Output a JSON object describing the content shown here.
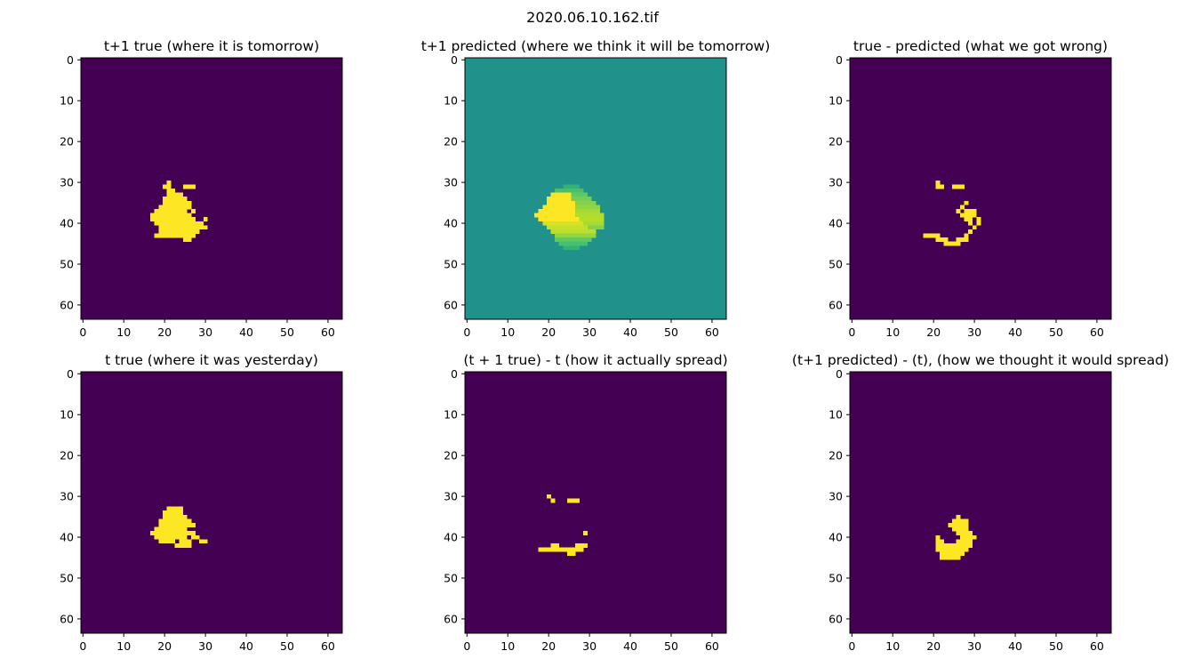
{
  "figure": {
    "title": "2020.06.10.162.tif"
  },
  "colors": {
    "low": "#440154",
    "mid": "#21918c",
    "high": "#fde725",
    "green": "#7ad151",
    "lightgreen": "#b5de2b",
    "teal": "#35b779"
  },
  "chart_data": [
    {
      "type": "heatmap",
      "title": "t+1 true (where it is tomorrow)",
      "grid_size": 64,
      "xticks": [
        0,
        10,
        20,
        30,
        40,
        50,
        60
      ],
      "yticks": [
        0,
        10,
        20,
        30,
        40,
        50,
        60
      ],
      "background": 0,
      "rows": [
        {
          "y": 30,
          "runs": [
            [
              21,
              21,
              1
            ]
          ]
        },
        {
          "y": 31,
          "runs": [
            [
              20,
              21,
              1
            ],
            [
              25,
              27,
              1
            ]
          ]
        },
        {
          "y": 32,
          "runs": [
            [
              21,
              22,
              1
            ]
          ]
        },
        {
          "y": 33,
          "runs": [
            [
              21,
              24,
              1
            ]
          ]
        },
        {
          "y": 34,
          "runs": [
            [
              20,
              25,
              1
            ]
          ]
        },
        {
          "y": 35,
          "runs": [
            [
              20,
              26,
              1
            ]
          ]
        },
        {
          "y": 36,
          "runs": [
            [
              19,
              26,
              1
            ]
          ]
        },
        {
          "y": 37,
          "runs": [
            [
              18,
              25,
              1
            ],
            [
              27,
              27,
              1
            ]
          ]
        },
        {
          "y": 38,
          "runs": [
            [
              17,
              26,
              1
            ]
          ]
        },
        {
          "y": 39,
          "runs": [
            [
              17,
              27,
              1
            ],
            [
              30,
              30,
              1
            ]
          ]
        },
        {
          "y": 40,
          "runs": [
            [
              18,
              29,
              1
            ]
          ]
        },
        {
          "y": 41,
          "runs": [
            [
              19,
              30,
              1
            ]
          ]
        },
        {
          "y": 42,
          "runs": [
            [
              19,
              28,
              1
            ]
          ]
        },
        {
          "y": 43,
          "runs": [
            [
              18,
              27,
              1
            ]
          ]
        },
        {
          "y": 44,
          "runs": [
            [
              25,
              26,
              1
            ]
          ]
        }
      ]
    },
    {
      "type": "heatmap",
      "title": "t+1 predicted (where we think it will be tomorrow)",
      "grid_size": 64,
      "xticks": [
        0,
        10,
        20,
        30,
        40,
        50,
        60
      ],
      "yticks": [
        0,
        10,
        20,
        30,
        40,
        50,
        60
      ],
      "background": 0.5,
      "rows": [
        {
          "y": 31,
          "runs": [
            [
              24,
              27,
              0.6
            ]
          ]
        },
        {
          "y": 32,
          "runs": [
            [
              22,
              28,
              0.68
            ]
          ]
        },
        {
          "y": 33,
          "runs": [
            [
              21,
              25,
              1
            ],
            [
              26,
              29,
              0.75
            ]
          ]
        },
        {
          "y": 34,
          "runs": [
            [
              20,
              25,
              1
            ],
            [
              26,
              30,
              0.78
            ]
          ]
        },
        {
          "y": 35,
          "runs": [
            [
              20,
              26,
              1
            ],
            [
              27,
              31,
              0.8
            ]
          ]
        },
        {
          "y": 36,
          "runs": [
            [
              19,
              26,
              1
            ],
            [
              27,
              32,
              0.82
            ]
          ]
        },
        {
          "y": 37,
          "runs": [
            [
              18,
              26,
              1
            ],
            [
              27,
              32,
              0.85
            ]
          ]
        },
        {
          "y": 38,
          "runs": [
            [
              17,
              26,
              1
            ],
            [
              27,
              33,
              0.86
            ]
          ]
        },
        {
          "y": 39,
          "runs": [
            [
              18,
              27,
              1
            ],
            [
              28,
              33,
              0.87
            ]
          ]
        },
        {
          "y": 40,
          "runs": [
            [
              19,
              28,
              0.93
            ],
            [
              29,
              33,
              0.85
            ]
          ]
        },
        {
          "y": 41,
          "runs": [
            [
              20,
              29,
              0.9
            ],
            [
              30,
              33,
              0.8
            ]
          ]
        },
        {
          "y": 42,
          "runs": [
            [
              21,
              31,
              0.88
            ]
          ]
        },
        {
          "y": 43,
          "runs": [
            [
              22,
              31,
              0.82
            ]
          ]
        },
        {
          "y": 44,
          "runs": [
            [
              22,
              30,
              0.75
            ]
          ]
        },
        {
          "y": 45,
          "runs": [
            [
              23,
              29,
              0.68
            ]
          ]
        },
        {
          "y": 46,
          "runs": [
            [
              24,
              27,
              0.6
            ]
          ]
        }
      ]
    },
    {
      "type": "heatmap",
      "title": "true - predicted (what we got wrong)",
      "grid_size": 64,
      "xticks": [
        0,
        10,
        20,
        30,
        40,
        50,
        60
      ],
      "yticks": [
        0,
        10,
        20,
        30,
        40,
        50,
        60
      ],
      "background": 0,
      "rows": [
        {
          "y": 30,
          "runs": [
            [
              21,
              21,
              1
            ]
          ]
        },
        {
          "y": 31,
          "runs": [
            [
              21,
              22,
              1
            ],
            [
              25,
              27,
              1
            ]
          ]
        },
        {
          "y": 35,
          "runs": [
            [
              28,
              28,
              1
            ]
          ]
        },
        {
          "y": 36,
          "runs": [
            [
              27,
              27,
              1
            ]
          ]
        },
        {
          "y": 37,
          "runs": [
            [
              26,
              26,
              1
            ],
            [
              28,
              30,
              1
            ]
          ]
        },
        {
          "y": 38,
          "runs": [
            [
              27,
              30,
              1
            ]
          ]
        },
        {
          "y": 39,
          "runs": [
            [
              28,
              29,
              1
            ],
            [
              31,
              31,
              1
            ]
          ]
        },
        {
          "y": 40,
          "runs": [
            [
              29,
              29,
              1
            ],
            [
              31,
              31,
              1
            ]
          ]
        },
        {
          "y": 41,
          "runs": [
            [
              30,
              30,
              1
            ]
          ]
        },
        {
          "y": 42,
          "runs": [
            [
              29,
              29,
              1
            ]
          ]
        },
        {
          "y": 43,
          "runs": [
            [
              18,
              21,
              1
            ],
            [
              28,
              28,
              1
            ]
          ]
        },
        {
          "y": 44,
          "runs": [
            [
              21,
              23,
              1
            ],
            [
              26,
              28,
              1
            ]
          ]
        },
        {
          "y": 45,
          "runs": [
            [
              23,
              26,
              1
            ]
          ]
        }
      ]
    },
    {
      "type": "heatmap",
      "title": "t true (where it was yesterday)",
      "grid_size": 64,
      "xticks": [
        0,
        10,
        20,
        30,
        40,
        50,
        60
      ],
      "yticks": [
        0,
        10,
        20,
        30,
        40,
        50,
        60
      ],
      "background": 0,
      "rows": [
        {
          "y": 33,
          "runs": [
            [
              21,
              24,
              1
            ]
          ]
        },
        {
          "y": 34,
          "runs": [
            [
              20,
              24,
              1
            ]
          ]
        },
        {
          "y": 35,
          "runs": [
            [
              20,
              25,
              1
            ]
          ]
        },
        {
          "y": 36,
          "runs": [
            [
              19,
              26,
              1
            ]
          ]
        },
        {
          "y": 37,
          "runs": [
            [
              19,
              27,
              1
            ]
          ]
        },
        {
          "y": 38,
          "runs": [
            [
              18,
              25,
              1
            ]
          ]
        },
        {
          "y": 39,
          "runs": [
            [
              17,
              27,
              1
            ]
          ]
        },
        {
          "y": 40,
          "runs": [
            [
              18,
              25,
              1
            ],
            [
              27,
              28,
              1
            ]
          ]
        },
        {
          "y": 41,
          "runs": [
            [
              19,
              22,
              1
            ],
            [
              24,
              26,
              1
            ],
            [
              29,
              30,
              1
            ]
          ]
        },
        {
          "y": 42,
          "runs": [
            [
              23,
              26,
              1
            ]
          ]
        }
      ]
    },
    {
      "type": "heatmap",
      "title": "(t + 1 true) - t (how it actually spread)",
      "grid_size": 64,
      "xticks": [
        0,
        10,
        20,
        30,
        40,
        50,
        60
      ],
      "yticks": [
        0,
        10,
        20,
        30,
        40,
        50,
        60
      ],
      "background": 0,
      "rows": [
        {
          "y": 30,
          "runs": [
            [
              20,
              20,
              1
            ]
          ]
        },
        {
          "y": 31,
          "runs": [
            [
              21,
              21,
              1
            ],
            [
              25,
              27,
              1
            ]
          ]
        },
        {
          "y": 39,
          "runs": [
            [
              29,
              29,
              1
            ]
          ]
        },
        {
          "y": 42,
          "runs": [
            [
              21,
              22,
              1
            ],
            [
              27,
              29,
              1
            ]
          ]
        },
        {
          "y": 43,
          "runs": [
            [
              18,
              28,
              1
            ]
          ]
        },
        {
          "y": 44,
          "runs": [
            [
              25,
              26,
              1
            ]
          ]
        }
      ]
    },
    {
      "type": "heatmap",
      "title": "(t+1 predicted) - (t), (how we thought it would spread)",
      "grid_size": 64,
      "xticks": [
        0,
        10,
        20,
        30,
        40,
        50,
        60
      ],
      "yticks": [
        0,
        10,
        20,
        30,
        40,
        50,
        60
      ],
      "background": 0,
      "rows": [
        {
          "y": 35,
          "runs": [
            [
              26,
              26,
              1
            ]
          ]
        },
        {
          "y": 36,
          "runs": [
            [
              25,
              28,
              1
            ]
          ]
        },
        {
          "y": 37,
          "runs": [
            [
              24,
              28,
              1
            ]
          ]
        },
        {
          "y": 38,
          "runs": [
            [
              25,
              28,
              1
            ]
          ]
        },
        {
          "y": 39,
          "runs": [
            [
              26,
              29,
              1
            ]
          ]
        },
        {
          "y": 40,
          "runs": [
            [
              21,
              21,
              1
            ],
            [
              27,
              30,
              1
            ]
          ]
        },
        {
          "y": 41,
          "runs": [
            [
              21,
              22,
              1
            ],
            [
              26,
              29,
              1
            ]
          ]
        },
        {
          "y": 42,
          "runs": [
            [
              21,
              29,
              1
            ]
          ]
        },
        {
          "y": 43,
          "runs": [
            [
              21,
              28,
              1
            ]
          ]
        },
        {
          "y": 44,
          "runs": [
            [
              22,
              27,
              1
            ]
          ]
        },
        {
          "y": 45,
          "runs": [
            [
              22,
              26,
              1
            ]
          ]
        }
      ]
    }
  ]
}
